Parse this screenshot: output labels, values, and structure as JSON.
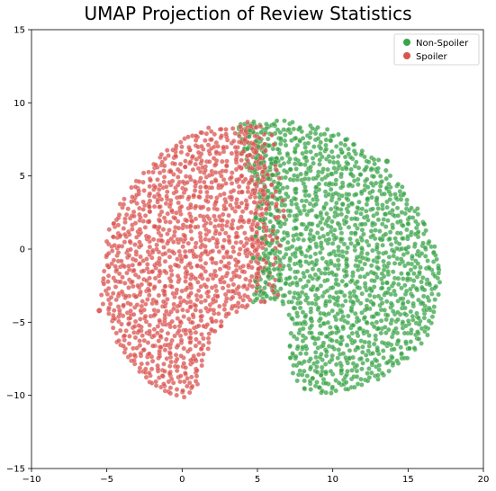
{
  "chart_data": {
    "type": "scatter",
    "title": "UMAP Projection of Review Statistics",
    "xlabel": "",
    "ylabel": "",
    "xlim": [
      -10,
      20
    ],
    "ylim": [
      -15,
      15
    ],
    "xticks": [
      -10,
      -5,
      0,
      5,
      10,
      15,
      20
    ],
    "yticks": [
      -15,
      -10,
      -5,
      0,
      5,
      10,
      15
    ],
    "grid": false,
    "legend_position": "top-right",
    "series": [
      {
        "name": "Non-Spoiler",
        "color": "#3aa448"
      },
      {
        "name": "Spoiler",
        "color": "#d9534f"
      }
    ],
    "regions": {
      "Spoiler": [
        [
          -5.3,
          -4.2
        ],
        [
          -5.4,
          -3
        ],
        [
          -5.3,
          -1
        ],
        [
          -5,
          1
        ],
        [
          -4.2,
          3
        ],
        [
          -3,
          4.8
        ],
        [
          -1.5,
          6.5
        ],
        [
          0,
          7.6
        ],
        [
          1.5,
          8.3
        ],
        [
          3,
          8.6
        ],
        [
          4.5,
          8.7
        ],
        [
          5.2,
          8.6
        ],
        [
          5.5,
          6.5
        ],
        [
          5.7,
          3
        ],
        [
          5.6,
          1
        ],
        [
          5.3,
          -1.5
        ],
        [
          4.8,
          -3.5
        ],
        [
          4,
          -4.3
        ],
        [
          2.8,
          -5
        ],
        [
          2.1,
          -6
        ],
        [
          1.6,
          -7.2
        ],
        [
          1.3,
          -8.5
        ],
        [
          0.9,
          -9.6
        ],
        [
          0.2,
          -10.2
        ],
        [
          -0.8,
          -10
        ],
        [
          -2,
          -9.3
        ],
        [
          -3.5,
          -7.8
        ],
        [
          -4.6,
          -6
        ],
        [
          -5.3,
          -4.2
        ]
      ],
      "Non-Spoiler": [
        [
          4.2,
          -4.2
        ],
        [
          5,
          -3.7
        ],
        [
          6.2,
          -3.6
        ],
        [
          7,
          -4.1
        ],
        [
          7.2,
          -5
        ],
        [
          7.2,
          -6
        ],
        [
          7.0,
          -7.5
        ],
        [
          7.3,
          -8.8
        ],
        [
          8.2,
          -9.7
        ],
        [
          9.5,
          -10
        ],
        [
          11,
          -9.7
        ],
        [
          13,
          -9
        ],
        [
          15,
          -7.6
        ],
        [
          16.3,
          -6
        ],
        [
          17.1,
          -3.5
        ],
        [
          17.2,
          -1.5
        ],
        [
          16.9,
          0
        ],
        [
          16,
          2.2
        ],
        [
          14.6,
          4.4
        ],
        [
          13,
          6.2
        ],
        [
          11,
          7.6
        ],
        [
          9,
          8.5
        ],
        [
          7,
          8.8
        ],
        [
          5,
          8.8
        ],
        [
          3.6,
          8.7
        ],
        [
          3.8,
          6.5
        ],
        [
          4.6,
          4.5
        ],
        [
          5.4,
          2.6
        ],
        [
          5.3,
          0.5
        ],
        [
          4.9,
          -1.8
        ],
        [
          4.5,
          -3.4
        ],
        [
          4.2,
          -4.2
        ]
      ]
    },
    "outliers": [
      {
        "series": "Non-Spoiler",
        "x": 13.6,
        "y": 6.0
      },
      {
        "series": "Spoiler",
        "x": -5.5,
        "y": -4.2
      }
    ]
  }
}
